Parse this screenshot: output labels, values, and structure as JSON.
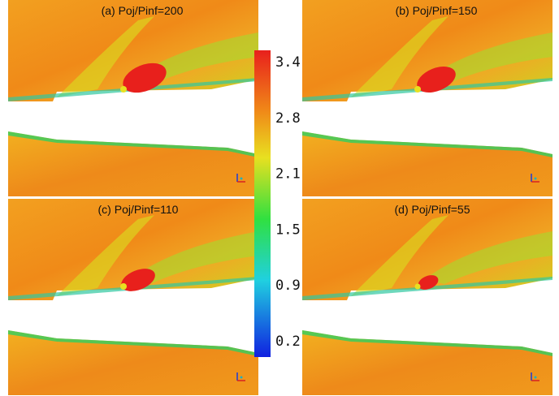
{
  "panels": [
    {
      "title": "(a) Poj/Pinf=200"
    },
    {
      "title": "(b) Poj/Pinf=150"
    },
    {
      "title": "(c) Poj/Pinf=110"
    },
    {
      "title": "(d) Poj/Pinf=55"
    }
  ],
  "colorbar": {
    "ticks": [
      "3.4",
      "2.8",
      "2.1",
      "1.5",
      "0.9",
      "0.2"
    ]
  }
}
